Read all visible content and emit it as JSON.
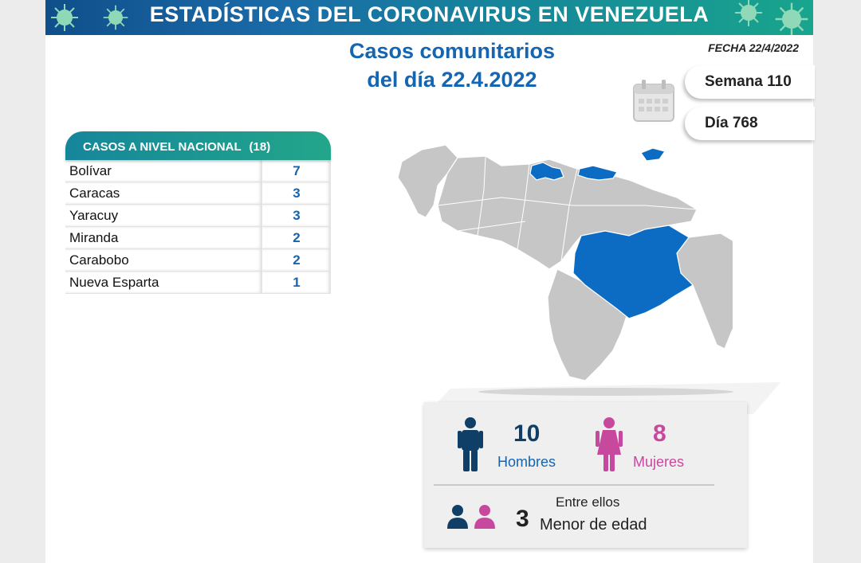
{
  "header": {
    "title": "ESTADÍSTICAS DEL CORONAVIRUS EN VENEZUELA"
  },
  "headline": {
    "line1": "Casos comunitarios",
    "line2": "del día 22.4.2022"
  },
  "fecha": "FECHA 22/4/2022",
  "semana": "Semana 110",
  "dia": "Día 768",
  "table": {
    "title": "CASOS A NIVEL NACIONAL",
    "total": "(18)",
    "rows": [
      {
        "state": "Bolívar",
        "count": "7"
      },
      {
        "state": "Caracas",
        "count": "3"
      },
      {
        "state": "Yaracuy",
        "count": "3"
      },
      {
        "state": "Miranda",
        "count": "2"
      },
      {
        "state": "Carabobo",
        "count": "2"
      },
      {
        "state": "Nueva Esparta",
        "count": "1"
      }
    ]
  },
  "stats": {
    "hombres_num": "10",
    "hombres_label": "Hombres",
    "mujeres_num": "8",
    "mujeres_label": "Mujeres",
    "menores_intro": "Entre ellos",
    "menores_num": "3",
    "menores_label": "Menor de edad"
  },
  "colors": {
    "primary_blue": "#1565b0",
    "male_color": "#0f3f66",
    "female_color": "#c7499d",
    "map_gray": "#c6c6c6",
    "map_highlight": "#0c6cc4",
    "teal": "#18a58d"
  },
  "icons": [
    "virus-icon",
    "calendar-icon",
    "man-icon",
    "woman-icon",
    "child-boy-icon",
    "child-girl-icon",
    "venezuela-map"
  ]
}
